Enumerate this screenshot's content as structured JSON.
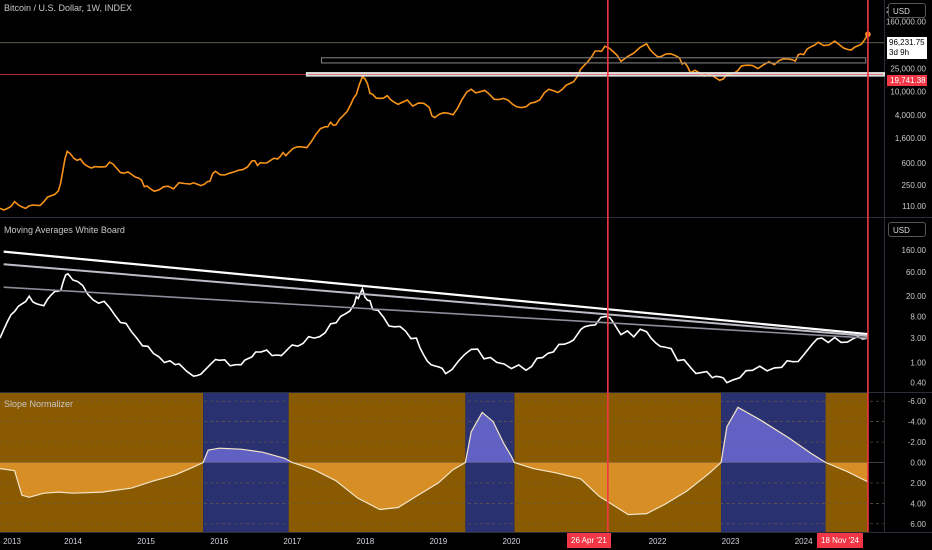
{
  "header": {
    "symbol_title": "Bitcoin / U.S. Dollar, 1W, INDEX",
    "currency": "USD"
  },
  "price_label": {
    "value": "96,231.75",
    "countdown": "3d 9h"
  },
  "level_label": "19,741.38",
  "pane2": {
    "title": "Moving Averages White Board",
    "currency": "USD"
  },
  "pane3": {
    "title": "Slope Normalizer"
  },
  "markers": [
    {
      "label": "26 Apr '21",
      "date": 2021.32
    },
    {
      "label": "18 Nov '24",
      "date": 2024.88
    }
  ],
  "colors": {
    "price": "#f7931a",
    "marker": "#f23645",
    "bull_bg": "#8a5a00",
    "bear_bg": "#2a3170",
    "osc_pos": "#f0a030",
    "osc_neg": "#6a6ad0"
  },
  "chart_data": [
    {
      "type": "line",
      "pane": "price",
      "scale": "log",
      "y_ticks": [
        "250,000.00",
        "160,000.00",
        "60,000.00",
        "25,000.00",
        "10,000.00",
        "4,000.00",
        "1,600.00",
        "600.00",
        "250.00",
        "110.00"
      ],
      "series": [
        {
          "values": [
            [
              2013.0,
              100
            ],
            [
              2013.2,
              130
            ],
            [
              2013.4,
              110
            ],
            [
              2013.6,
              130
            ],
            [
              2013.8,
              200
            ],
            [
              2013.92,
              950
            ],
            [
              2014.1,
              700
            ],
            [
              2014.3,
              520
            ],
            [
              2014.5,
              620
            ],
            [
              2014.7,
              400
            ],
            [
              2014.9,
              330
            ],
            [
              2015.05,
              220
            ],
            [
              2015.3,
              240
            ],
            [
              2015.6,
              260
            ],
            [
              2015.8,
              260
            ],
            [
              2015.95,
              430
            ],
            [
              2016.2,
              420
            ],
            [
              2016.45,
              650
            ],
            [
              2016.6,
              600
            ],
            [
              2016.8,
              700
            ],
            [
              2016.95,
              900
            ],
            [
              2017.2,
              1100
            ],
            [
              2017.45,
              2500
            ],
            [
              2017.6,
              2700
            ],
            [
              2017.8,
              6000
            ],
            [
              2017.96,
              18000
            ],
            [
              2018.1,
              9000
            ],
            [
              2018.3,
              8500
            ],
            [
              2018.5,
              6500
            ],
            [
              2018.8,
              6300
            ],
            [
              2018.95,
              3600
            ],
            [
              2019.2,
              4000
            ],
            [
              2019.45,
              11000
            ],
            [
              2019.7,
              9000
            ],
            [
              2019.95,
              7200
            ],
            [
              2020.2,
              5500
            ],
            [
              2020.45,
              9500
            ],
            [
              2020.7,
              11000
            ],
            [
              2020.9,
              18000
            ],
            [
              2021.1,
              40000
            ],
            [
              2021.28,
              60000
            ],
            [
              2021.5,
              33000
            ],
            [
              2021.85,
              66000
            ],
            [
              2022.05,
              40000
            ],
            [
              2022.3,
              38000
            ],
            [
              2022.45,
              21000
            ],
            [
              2022.7,
              19500
            ],
            [
              2022.9,
              16500
            ],
            [
              2023.1,
              23000
            ],
            [
              2023.3,
              28000
            ],
            [
              2023.6,
              29000
            ],
            [
              2023.85,
              35000
            ],
            [
              2024.0,
              43000
            ],
            [
              2024.2,
              70000
            ],
            [
              2024.5,
              62000
            ],
            [
              2024.7,
              58000
            ],
            [
              2024.88,
              96231
            ]
          ]
        }
      ],
      "horizontal_lines": [
        69000,
        19741.38
      ]
    },
    {
      "type": "line",
      "pane": "moving_averages",
      "scale": "log",
      "y_ticks": [
        "400.00",
        "160.00",
        "60.00",
        "20.00",
        "8.00",
        "3.00",
        "1.00",
        "0.40"
      ],
      "series": [
        {
          "values": [
            [
              2013.0,
              3
            ],
            [
              2013.2,
              10
            ],
            [
              2013.4,
              20
            ],
            [
              2013.6,
              13
            ],
            [
              2013.8,
              25
            ],
            [
              2013.93,
              55
            ],
            [
              2014.2,
              22
            ],
            [
              2014.5,
              12
            ],
            [
              2014.8,
              4
            ],
            [
              2015.1,
              1.5
            ],
            [
              2015.4,
              0.9
            ],
            [
              2015.6,
              0.6
            ],
            [
              2015.8,
              0.7
            ],
            [
              2016.0,
              1.1
            ],
            [
              2016.3,
              0.9
            ],
            [
              2016.5,
              1.6
            ],
            [
              2016.8,
              1.4
            ],
            [
              2017.0,
              2.2
            ],
            [
              2017.3,
              3.0
            ],
            [
              2017.6,
              6.0
            ],
            [
              2017.85,
              14
            ],
            [
              2017.96,
              28
            ],
            [
              2018.1,
              11
            ],
            [
              2018.4,
              5
            ],
            [
              2018.7,
              3
            ],
            [
              2018.9,
              0.9
            ],
            [
              2019.1,
              0.6
            ],
            [
              2019.45,
              1.8
            ],
            [
              2019.8,
              1.0
            ],
            [
              2020.2,
              0.7
            ],
            [
              2020.5,
              1.5
            ],
            [
              2020.8,
              2.5
            ],
            [
              2021.0,
              5
            ],
            [
              2021.3,
              8
            ],
            [
              2021.5,
              3.5
            ],
            [
              2021.85,
              4
            ],
            [
              2022.1,
              2
            ],
            [
              2022.45,
              0.8
            ],
            [
              2022.75,
              0.5
            ],
            [
              2022.95,
              0.4
            ],
            [
              2023.3,
              0.7
            ],
            [
              2023.7,
              0.8
            ],
            [
              2024.0,
              1.4
            ],
            [
              2024.25,
              3
            ],
            [
              2024.6,
              2.5
            ],
            [
              2024.88,
              3.0
            ]
          ]
        }
      ],
      "trend_lines": [
        {
          "from": [
            2013.05,
            150
          ],
          "to": [
            2024.88,
            3.6
          ]
        },
        {
          "from": [
            2013.05,
            85
          ],
          "to": [
            2024.88,
            3.3
          ]
        },
        {
          "from": [
            2013.05,
            30
          ],
          "to": [
            2024.88,
            3.0
          ]
        }
      ]
    },
    {
      "type": "area",
      "pane": "oscillator",
      "ylim": [
        -6.5,
        6.5
      ],
      "y_ticks": [
        "6.00",
        "4.00",
        "2.00",
        "0.00",
        "-2.00",
        "-4.00",
        "-6.00"
      ],
      "series": [
        {
          "values": [
            [
              2013.0,
              0.6
            ],
            [
              2013.2,
              0.8
            ],
            [
              2013.3,
              3.2
            ],
            [
              2013.4,
              3.4
            ],
            [
              2013.6,
              3.0
            ],
            [
              2013.8,
              2.9
            ],
            [
              2014.0,
              3.0
            ],
            [
              2014.4,
              2.9
            ],
            [
              2014.8,
              2.5
            ],
            [
              2015.1,
              1.8
            ],
            [
              2015.4,
              1.2
            ],
            [
              2015.6,
              0.6
            ],
            [
              2015.78,
              0.0
            ],
            [
              2015.85,
              -1.2
            ],
            [
              2016.0,
              -1.4
            ],
            [
              2016.3,
              -1.3
            ],
            [
              2016.6,
              -1.0
            ],
            [
              2016.9,
              -0.4
            ],
            [
              2017.0,
              0.0
            ],
            [
              2017.3,
              0.7
            ],
            [
              2017.6,
              1.8
            ],
            [
              2017.9,
              3.5
            ],
            [
              2018.2,
              4.6
            ],
            [
              2018.45,
              4.4
            ],
            [
              2018.7,
              3.3
            ],
            [
              2019.0,
              2.0
            ],
            [
              2019.2,
              0.7
            ],
            [
              2019.37,
              0.0
            ],
            [
              2019.45,
              -3.0
            ],
            [
              2019.6,
              -4.9
            ],
            [
              2019.75,
              -4.0
            ],
            [
              2019.9,
              -1.8
            ],
            [
              2020.0,
              -0.6
            ],
            [
              2020.04,
              0.0
            ],
            [
              2020.3,
              0.6
            ],
            [
              2020.6,
              1.0
            ],
            [
              2020.95,
              1.6
            ],
            [
              2021.2,
              3.3
            ],
            [
              2021.6,
              5.1
            ],
            [
              2021.85,
              5.0
            ],
            [
              2022.1,
              4.1
            ],
            [
              2022.4,
              2.8
            ],
            [
              2022.7,
              1.1
            ],
            [
              2022.87,
              0.0
            ],
            [
              2022.95,
              -3.5
            ],
            [
              2023.1,
              -5.4
            ],
            [
              2023.4,
              -4.2
            ],
            [
              2023.8,
              -2.4
            ],
            [
              2024.1,
              -0.9
            ],
            [
              2024.3,
              0.0
            ],
            [
              2024.6,
              0.9
            ],
            [
              2024.88,
              1.9
            ]
          ]
        }
      ],
      "bear_zones": [
        [
          2015.78,
          2016.95
        ],
        [
          2019.37,
          2020.04
        ],
        [
          2022.87,
          2024.3
        ]
      ],
      "bull_zones": [
        [
          2013.0,
          2015.78
        ],
        [
          2016.95,
          2019.37
        ],
        [
          2020.04,
          2022.87
        ],
        [
          2024.3,
          2024.88
        ]
      ]
    }
  ],
  "x_axis": {
    "ticks": [
      "2013",
      "2014",
      "2015",
      "2016",
      "2017",
      "2018",
      "2019",
      "2020",
      "2021",
      "2022",
      "2023",
      "2024"
    ]
  }
}
